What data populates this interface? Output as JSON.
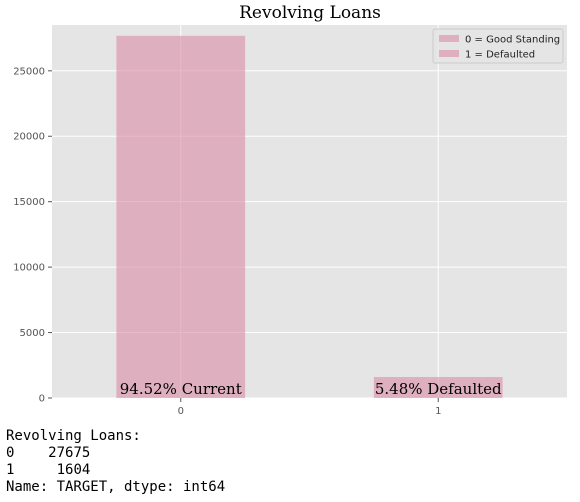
{
  "chart_data": {
    "type": "bar",
    "title": "Revolving Loans",
    "categories": [
      "0",
      "1"
    ],
    "values": [
      27675,
      1604
    ],
    "bar_labels": [
      "94.52% Current",
      "5.48% Defaulted"
    ],
    "ylim": [
      0,
      28500
    ],
    "yticks": [
      0,
      5000,
      10000,
      15000,
      20000,
      25000
    ],
    "grid": true,
    "legend": {
      "placement": "top-right",
      "entries": [
        "0 = Good Standing",
        "1 = Defaulted"
      ]
    },
    "bar_color": "#d98aa3",
    "background_color": "#e5e5e5",
    "grid_color": "#ffffff"
  },
  "console": {
    "header": "Revolving Loans:",
    "rows": [
      {
        "index": "0",
        "value": "27675"
      },
      {
        "index": "1",
        "value": "1604"
      }
    ],
    "footer": "Name: TARGET, dtype: int64"
  }
}
